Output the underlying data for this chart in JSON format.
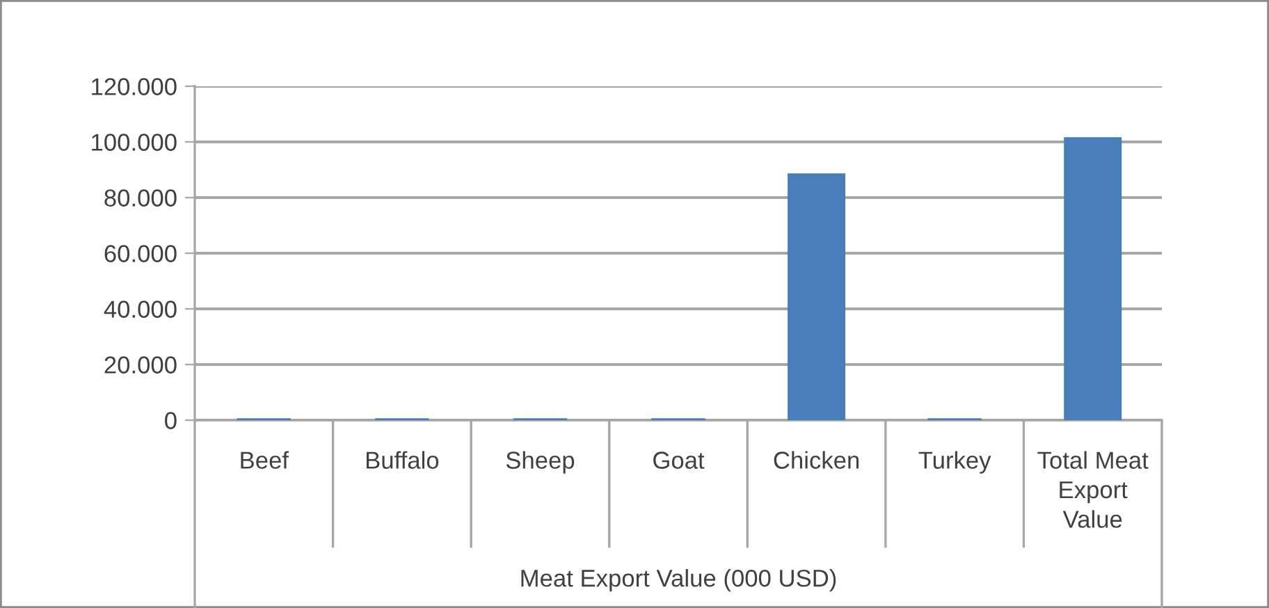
{
  "chart_data": {
    "type": "bar",
    "categories": [
      "Beef",
      "Buffalo",
      "Sheep",
      "Goat",
      "Chicken",
      "Turkey",
      "Total Meat\nExport\nValue"
    ],
    "values": [
      0,
      0,
      0,
      0,
      88000,
      0,
      101000
    ],
    "color": "#4a7ebb",
    "xlabel": "Meat Export Value (000 USD)",
    "ylim": [
      0,
      120000
    ],
    "yticks": [
      0,
      {
        "value": 20000,
        "label": "20.000"
      },
      {
        "value": 40000,
        "label": "40.000"
      },
      {
        "value": 60000,
        "label": "60.000"
      },
      {
        "value": 80000,
        "label": "80.000"
      },
      {
        "value": 100000,
        "label": "100.000"
      },
      {
        "value": 120000,
        "label": "120.000"
      }
    ],
    "grid": "y"
  }
}
